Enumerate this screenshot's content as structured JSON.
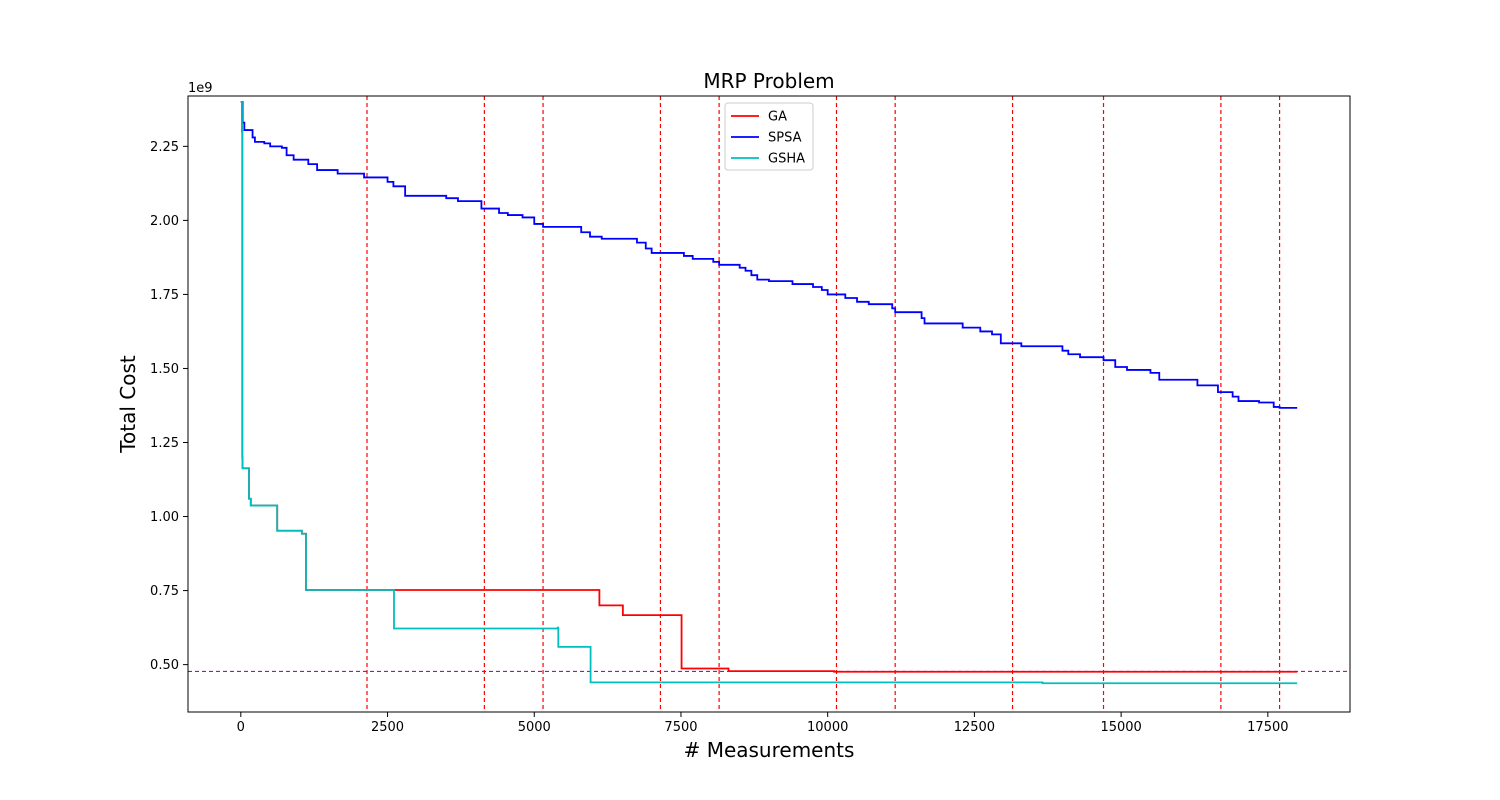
{
  "chart_data": {
    "type": "line",
    "title": "MRP Problem",
    "xlabel": "# Measurements",
    "ylabel": "Total Cost",
    "y_scale_label": "1e9",
    "y_scale": 1000000000,
    "xlim": [
      -900,
      18900
    ],
    "ylim": [
      0.34,
      2.42
    ],
    "x_ticks": [
      0,
      2500,
      5000,
      7500,
      10000,
      12500,
      15000,
      17500
    ],
    "x_tick_labels": [
      "0",
      "2500",
      "5000",
      "7500",
      "10000",
      "12500",
      "15000",
      "17500"
    ],
    "y_ticks": [
      0.5,
      0.75,
      1.0,
      1.25,
      1.5,
      1.75,
      2.0,
      2.25
    ],
    "y_tick_labels": [
      "0.50",
      "0.75",
      "1.00",
      "1.25",
      "1.50",
      "1.75",
      "2.00",
      "2.25"
    ],
    "grid": false,
    "legend_position": "top-center",
    "vlines": {
      "color": "#ff0000",
      "style": "dashed",
      "x": [
        2150,
        4150,
        5150,
        7150,
        8150,
        10150,
        11150,
        13150,
        14700,
        16700,
        17700
      ]
    },
    "hline": {
      "color": "#bf00bf",
      "style": "dashed",
      "y": 0.477
    },
    "series": [
      {
        "name": "GA",
        "color": "#ff0000",
        "step": true,
        "points": [
          [
            0,
            2.4
          ],
          [
            20,
            2.3
          ],
          [
            25,
            1.2
          ],
          [
            30,
            1.163
          ],
          [
            130,
            1.163
          ],
          [
            140,
            1.06
          ],
          [
            160,
            1.06
          ],
          [
            170,
            1.037
          ],
          [
            610,
            1.037
          ],
          [
            620,
            0.952
          ],
          [
            1030,
            0.952
          ],
          [
            1040,
            0.942
          ],
          [
            1100,
            0.942
          ],
          [
            1110,
            0.752
          ],
          [
            6100,
            0.752
          ],
          [
            6110,
            0.7
          ],
          [
            6500,
            0.7
          ],
          [
            6510,
            0.667
          ],
          [
            7500,
            0.667
          ],
          [
            7510,
            0.487
          ],
          [
            8300,
            0.487
          ],
          [
            8310,
            0.478
          ],
          [
            10100,
            0.478
          ],
          [
            10110,
            0.476
          ],
          [
            18000,
            0.476
          ]
        ]
      },
      {
        "name": "SPSA",
        "color": "#0000ff",
        "step": true,
        "points": [
          [
            0,
            2.4
          ],
          [
            30,
            2.33
          ],
          [
            60,
            2.305
          ],
          [
            180,
            2.305
          ],
          [
            200,
            2.28
          ],
          [
            240,
            2.265
          ],
          [
            400,
            2.26
          ],
          [
            500,
            2.25
          ],
          [
            700,
            2.245
          ],
          [
            780,
            2.22
          ],
          [
            900,
            2.205
          ],
          [
            1150,
            2.19
          ],
          [
            1300,
            2.17
          ],
          [
            1650,
            2.158
          ],
          [
            2100,
            2.145
          ],
          [
            2500,
            2.13
          ],
          [
            2600,
            2.115
          ],
          [
            2800,
            2.083
          ],
          [
            3500,
            2.075
          ],
          [
            3700,
            2.065
          ],
          [
            4100,
            2.04
          ],
          [
            4400,
            2.025
          ],
          [
            4550,
            2.018
          ],
          [
            4800,
            2.01
          ],
          [
            5000,
            1.988
          ],
          [
            5150,
            1.978
          ],
          [
            5800,
            1.96
          ],
          [
            5950,
            1.945
          ],
          [
            6150,
            1.938
          ],
          [
            6750,
            1.925
          ],
          [
            6900,
            1.905
          ],
          [
            7000,
            1.89
          ],
          [
            7550,
            1.88
          ],
          [
            7700,
            1.87
          ],
          [
            8050,
            1.86
          ],
          [
            8150,
            1.85
          ],
          [
            8500,
            1.84
          ],
          [
            8600,
            1.83
          ],
          [
            8700,
            1.815
          ],
          [
            8800,
            1.8
          ],
          [
            9000,
            1.795
          ],
          [
            9400,
            1.785
          ],
          [
            9750,
            1.775
          ],
          [
            9900,
            1.765
          ],
          [
            10000,
            1.75
          ],
          [
            10300,
            1.738
          ],
          [
            10500,
            1.725
          ],
          [
            10700,
            1.717
          ],
          [
            11100,
            1.703
          ],
          [
            11150,
            1.69
          ],
          [
            11600,
            1.67
          ],
          [
            11650,
            1.652
          ],
          [
            12300,
            1.638
          ],
          [
            12600,
            1.625
          ],
          [
            12800,
            1.615
          ],
          [
            12950,
            1.585
          ],
          [
            13300,
            1.575
          ],
          [
            14000,
            1.56
          ],
          [
            14100,
            1.548
          ],
          [
            14300,
            1.538
          ],
          [
            14700,
            1.528
          ],
          [
            14900,
            1.505
          ],
          [
            15100,
            1.495
          ],
          [
            15500,
            1.485
          ],
          [
            15650,
            1.462
          ],
          [
            16300,
            1.443
          ],
          [
            16650,
            1.42
          ],
          [
            16900,
            1.405
          ],
          [
            17000,
            1.39
          ],
          [
            17350,
            1.385
          ],
          [
            17600,
            1.37
          ],
          [
            17700,
            1.367
          ],
          [
            18000,
            1.367
          ]
        ]
      },
      {
        "name": "GSHA",
        "color": "#00bfbf",
        "step": true,
        "points": [
          [
            0,
            2.4
          ],
          [
            20,
            2.3
          ],
          [
            25,
            1.2
          ],
          [
            30,
            1.163
          ],
          [
            130,
            1.163
          ],
          [
            140,
            1.06
          ],
          [
            160,
            1.06
          ],
          [
            170,
            1.037
          ],
          [
            610,
            1.037
          ],
          [
            620,
            0.952
          ],
          [
            1030,
            0.952
          ],
          [
            1040,
            0.942
          ],
          [
            1100,
            0.942
          ],
          [
            1110,
            0.752
          ],
          [
            2600,
            0.752
          ],
          [
            2610,
            0.622
          ],
          [
            5400,
            0.625
          ],
          [
            5410,
            0.56
          ],
          [
            5950,
            0.56
          ],
          [
            5960,
            0.44
          ],
          [
            13650,
            0.44
          ],
          [
            13660,
            0.437
          ],
          [
            18000,
            0.437
          ]
        ]
      }
    ]
  }
}
